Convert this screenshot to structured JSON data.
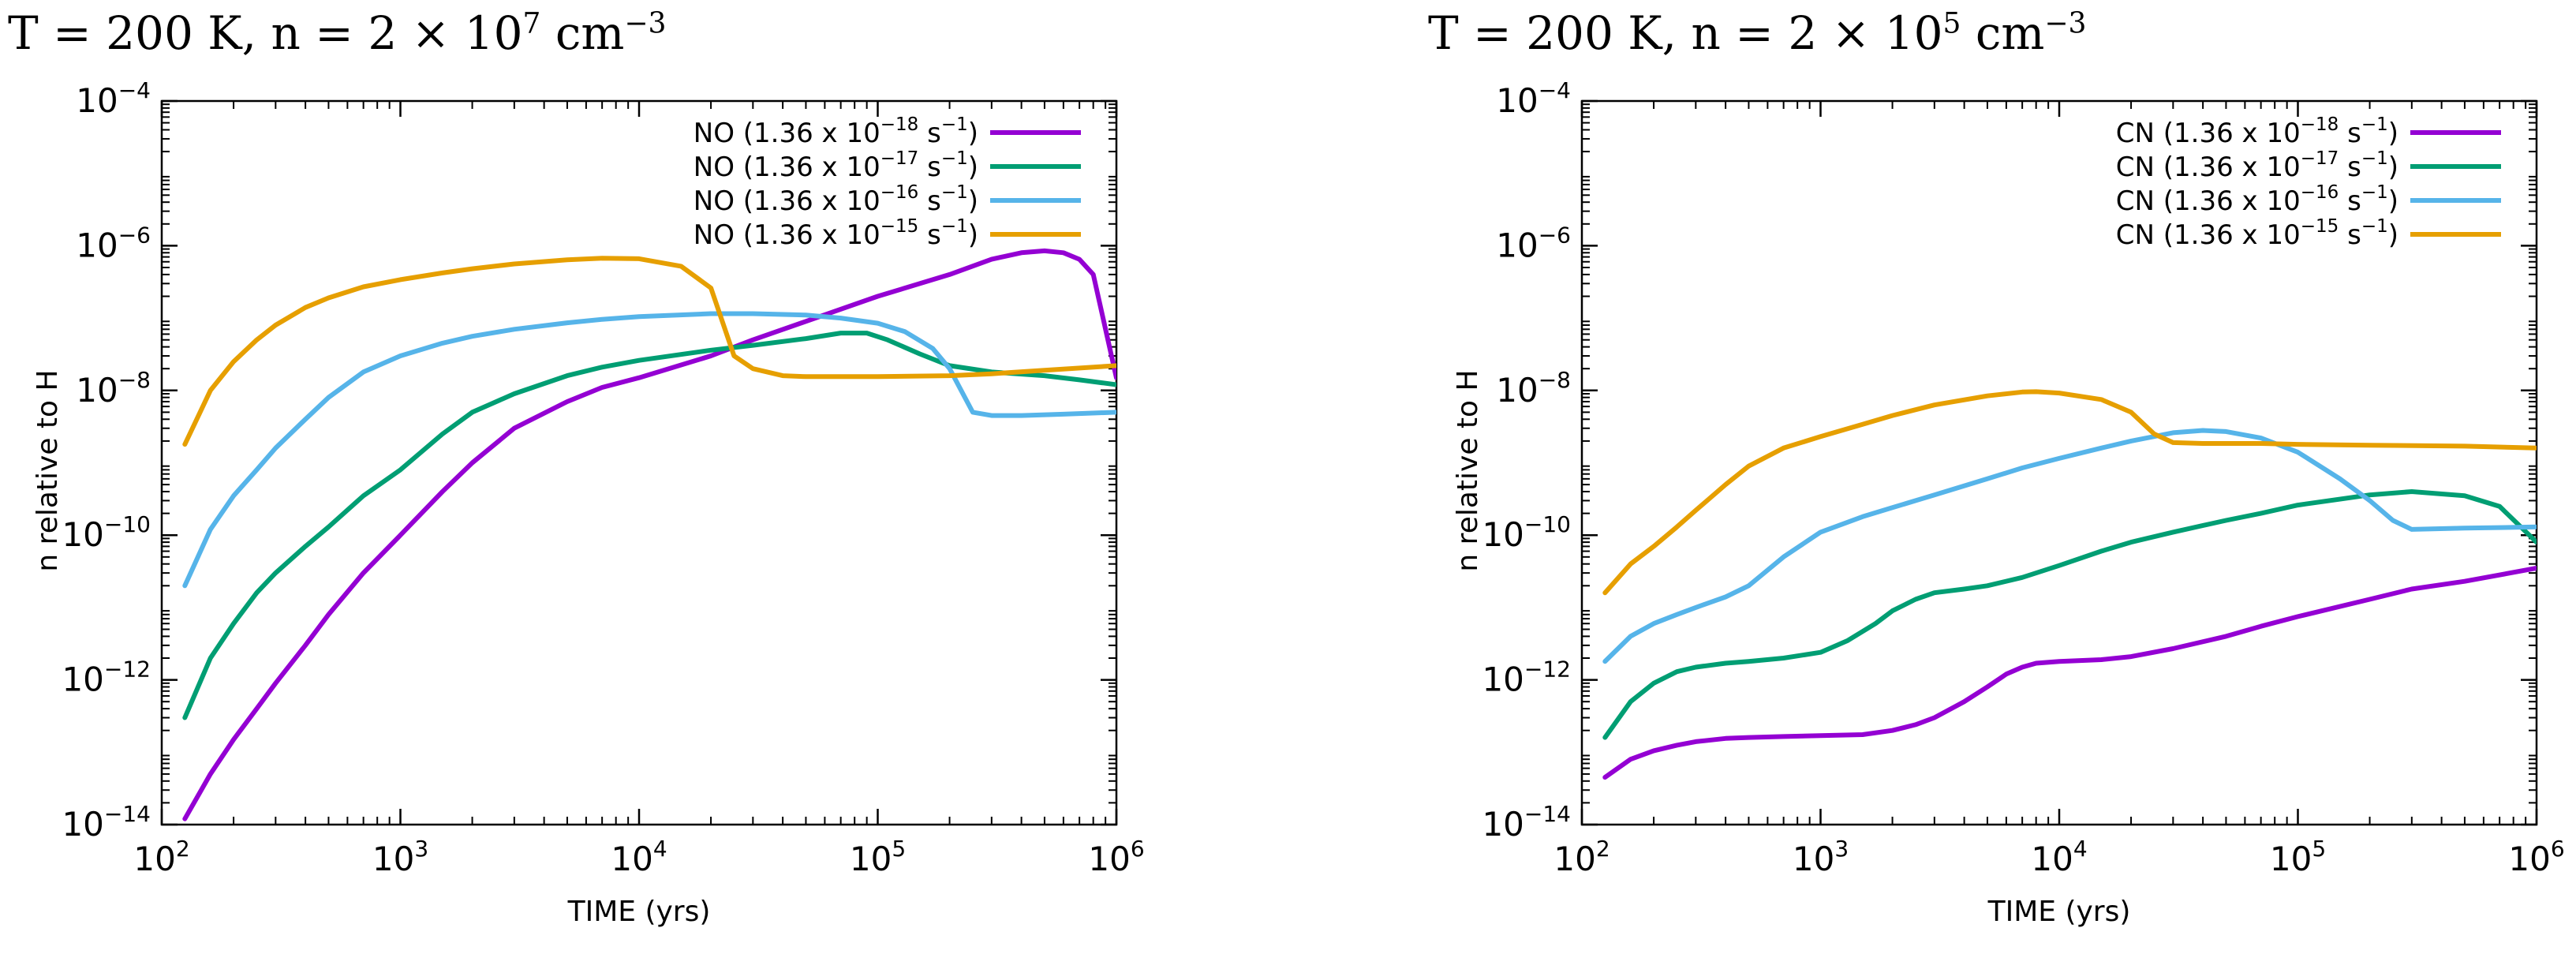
{
  "chart_data": [
    {
      "type": "line",
      "title": "T = 200 K, n = 2 × 10^7 cm^−3",
      "title_parts": {
        "pre": "T = 200 K, n = 2 × 10",
        "exp1": "7",
        "mid": " cm",
        "exp2": "−3"
      },
      "xlabel": "TIME (yrs)",
      "ylabel": "n relative to H",
      "xscale": "log",
      "yscale": "log",
      "xlim": [
        100,
        1000000
      ],
      "ylim": [
        1e-14,
        0.0001
      ],
      "x_ticks": [
        {
          "base": "10",
          "exp": "2"
        },
        {
          "base": "10",
          "exp": "3"
        },
        {
          "base": "10",
          "exp": "4"
        },
        {
          "base": "10",
          "exp": "5"
        },
        {
          "base": "10",
          "exp": "6"
        }
      ],
      "y_ticks": [
        {
          "base": "10",
          "exp": "−4"
        },
        {
          "base": "10",
          "exp": "−6"
        },
        {
          "base": "10",
          "exp": "−8"
        },
        {
          "base": "10",
          "exp": "−10"
        },
        {
          "base": "10",
          "exp": "−12"
        },
        {
          "base": "10",
          "exp": "−14"
        }
      ],
      "legend_position": "top-right",
      "series": [
        {
          "name": "NO (1.36 x 10^-18 s^-1)",
          "label_pre": "NO (1.36 x 10",
          "label_exp": "−18",
          "label_post": " s",
          "label_unit_exp": "−1",
          "color": "#9400d3",
          "x": [
            125,
            160,
            200,
            250,
            300,
            400,
            500,
            700,
            1000,
            1500,
            2000,
            3000,
            5000,
            7000,
            10000,
            20000,
            30000,
            50000,
            100000,
            200000,
            300000,
            400000,
            500000,
            600000,
            700000,
            800000,
            1000000
          ],
          "y": [
            1.2e-14,
            5e-14,
            1.5e-13,
            4e-13,
            9e-13,
            3e-12,
            8e-12,
            3e-11,
            1e-10,
            4e-10,
            1e-09,
            3e-09,
            7e-09,
            1.1e-08,
            1.5e-08,
            3e-08,
            5e-08,
            9e-08,
            2e-07,
            4e-07,
            6.5e-07,
            8e-07,
            8.5e-07,
            8e-07,
            6.5e-07,
            4e-07,
            1.5e-08
          ]
        },
        {
          "name": "NO (1.36 x 10^-17 s^-1)",
          "label_pre": "NO (1.36 x 10",
          "label_exp": "−17",
          "label_post": " s",
          "label_unit_exp": "−1",
          "color": "#009e73",
          "x": [
            125,
            160,
            200,
            250,
            300,
            400,
            500,
            700,
            1000,
            1500,
            2000,
            3000,
            5000,
            7000,
            10000,
            20000,
            30000,
            50000,
            70000,
            90000,
            110000,
            150000,
            200000,
            300000,
            500000,
            700000,
            1000000
          ],
          "y": [
            3e-13,
            2e-12,
            6e-12,
            1.6e-11,
            3e-11,
            7e-11,
            1.3e-10,
            3.5e-10,
            8e-10,
            2.5e-09,
            5e-09,
            9e-09,
            1.6e-08,
            2.1e-08,
            2.6e-08,
            3.6e-08,
            4.2e-08,
            5.2e-08,
            6.2e-08,
            6.2e-08,
            5e-08,
            3.2e-08,
            2.2e-08,
            1.8e-08,
            1.6e-08,
            1.4e-08,
            1.2e-08
          ]
        },
        {
          "name": "NO (1.36 x 10^-16 s^-1)",
          "label_pre": "NO (1.36 x 10",
          "label_exp": "−16",
          "label_post": " s",
          "label_unit_exp": "−1",
          "color": "#56b4e9",
          "x": [
            125,
            160,
            200,
            250,
            300,
            400,
            500,
            700,
            1000,
            1500,
            2000,
            3000,
            5000,
            7000,
            10000,
            20000,
            30000,
            50000,
            70000,
            100000,
            130000,
            170000,
            200000,
            250000,
            300000,
            400000,
            600000,
            1000000
          ],
          "y": [
            2e-11,
            1.2e-10,
            3.5e-10,
            8e-10,
            1.6e-09,
            4e-09,
            8e-09,
            1.8e-08,
            3e-08,
            4.5e-08,
            5.6e-08,
            7e-08,
            8.6e-08,
            9.6e-08,
            1.05e-07,
            1.15e-07,
            1.15e-07,
            1.1e-07,
            1e-07,
            8.5e-08,
            6.5e-08,
            3.8e-08,
            2e-08,
            5e-09,
            4.5e-09,
            4.5e-09,
            4.7e-09,
            5e-09
          ]
        },
        {
          "name": "NO (1.36 x 10^-15 s^-1)",
          "label_pre": "NO (1.36 x 10",
          "label_exp": "−15",
          "label_post": " s",
          "label_unit_exp": "−1",
          "color": "#e69f00",
          "x": [
            125,
            160,
            200,
            250,
            300,
            400,
            500,
            700,
            1000,
            1500,
            2000,
            3000,
            5000,
            7000,
            10000,
            15000,
            20000,
            25000,
            30000,
            40000,
            50000,
            70000,
            100000,
            200000,
            300000,
            500000,
            1000000
          ],
          "y": [
            1.8e-09,
            1e-08,
            2.5e-08,
            5e-08,
            8e-08,
            1.4e-07,
            1.9e-07,
            2.7e-07,
            3.4e-07,
            4.2e-07,
            4.8e-07,
            5.6e-07,
            6.4e-07,
            6.7e-07,
            6.6e-07,
            5.2e-07,
            2.6e-07,
            3e-08,
            2e-08,
            1.6e-08,
            1.55e-08,
            1.55e-08,
            1.55e-08,
            1.6e-08,
            1.7e-08,
            1.9e-08,
            2.2e-08
          ]
        }
      ]
    },
    {
      "type": "line",
      "title": "T = 200 K, n = 2 × 10^5 cm^−3",
      "title_parts": {
        "pre": "T = 200 K, n = 2 × 10",
        "exp1": "5",
        "mid": " cm",
        "exp2": "−3"
      },
      "xlabel": "TIME (yrs)",
      "ylabel": "n relative to H",
      "xscale": "log",
      "yscale": "log",
      "xlim": [
        100,
        1000000
      ],
      "ylim": [
        1e-14,
        0.0001
      ],
      "x_ticks": [
        {
          "base": "10",
          "exp": "2"
        },
        {
          "base": "10",
          "exp": "3"
        },
        {
          "base": "10",
          "exp": "4"
        },
        {
          "base": "10",
          "exp": "5"
        },
        {
          "base": "10",
          "exp": "6"
        }
      ],
      "y_ticks": [
        {
          "base": "10",
          "exp": "−4"
        },
        {
          "base": "10",
          "exp": "−6"
        },
        {
          "base": "10",
          "exp": "−8"
        },
        {
          "base": "10",
          "exp": "−10"
        },
        {
          "base": "10",
          "exp": "−12"
        },
        {
          "base": "10",
          "exp": "−14"
        }
      ],
      "legend_position": "top-right",
      "series": [
        {
          "name": "CN (1.36 x 10^-18 s^-1)",
          "label_pre": "CN (1.36 x 10",
          "label_exp": "−18",
          "label_post": " s",
          "label_unit_exp": "−1",
          "color": "#9400d3",
          "x": [
            125,
            160,
            200,
            250,
            300,
            400,
            500,
            700,
            1000,
            1500,
            2000,
            2500,
            3000,
            4000,
            5000,
            6000,
            7000,
            8000,
            10000,
            15000,
            20000,
            30000,
            50000,
            70000,
            100000,
            200000,
            300000,
            500000,
            1000000
          ],
          "y": [
            4.5e-14,
            8e-14,
            1.05e-13,
            1.25e-13,
            1.4e-13,
            1.55e-13,
            1.6e-13,
            1.65e-13,
            1.7e-13,
            1.75e-13,
            2e-13,
            2.4e-13,
            3e-13,
            5e-13,
            8e-13,
            1.2e-12,
            1.5e-12,
            1.7e-12,
            1.8e-12,
            1.9e-12,
            2.1e-12,
            2.7e-12,
            4e-12,
            5.5e-12,
            7.5e-12,
            1.3e-11,
            1.8e-11,
            2.3e-11,
            3.5e-11
          ]
        },
        {
          "name": "CN (1.36 x 10^-17 s^-1)",
          "label_pre": "CN (1.36 x 10",
          "label_exp": "−17",
          "label_post": " s",
          "label_unit_exp": "−1",
          "color": "#009e73",
          "x": [
            125,
            160,
            200,
            250,
            300,
            400,
            500,
            700,
            1000,
            1300,
            1700,
            2000,
            2500,
            3000,
            4000,
            5000,
            7000,
            10000,
            15000,
            20000,
            30000,
            50000,
            70000,
            100000,
            200000,
            300000,
            500000,
            700000,
            1000000
          ],
          "y": [
            1.6e-13,
            5e-13,
            9e-13,
            1.3e-12,
            1.5e-12,
            1.7e-12,
            1.8e-12,
            2e-12,
            2.4e-12,
            3.5e-12,
            6e-12,
            9e-12,
            1.3e-11,
            1.6e-11,
            1.8e-11,
            2e-11,
            2.6e-11,
            3.8e-11,
            6e-11,
            8e-11,
            1.1e-10,
            1.6e-10,
            2e-10,
            2.6e-10,
            3.6e-10,
            4e-10,
            3.5e-10,
            2.5e-10,
            8e-11
          ]
        },
        {
          "name": "CN (1.36 x 10^-16 s^-1)",
          "label_pre": "CN (1.36 x 10",
          "label_exp": "−16",
          "label_post": " s",
          "label_unit_exp": "−1",
          "color": "#56b4e9",
          "x": [
            125,
            160,
            200,
            250,
            300,
            400,
            500,
            700,
            1000,
            1500,
            2000,
            3000,
            5000,
            7000,
            10000,
            15000,
            20000,
            30000,
            40000,
            50000,
            70000,
            100000,
            150000,
            200000,
            250000,
            300000,
            500000,
            1000000
          ],
          "y": [
            1.8e-12,
            4e-12,
            6e-12,
            8e-12,
            1e-11,
            1.4e-11,
            2e-11,
            5e-11,
            1.1e-10,
            1.8e-10,
            2.4e-10,
            3.6e-10,
            6e-10,
            8.5e-10,
            1.15e-09,
            1.6e-09,
            2e-09,
            2.6e-09,
            2.8e-09,
            2.7e-09,
            2.2e-09,
            1.4e-09,
            6e-10,
            3e-10,
            1.6e-10,
            1.2e-10,
            1.25e-10,
            1.3e-10
          ]
        },
        {
          "name": "CN (1.36 x 10^-15 s^-1)",
          "label_pre": "CN (1.36 x 10",
          "label_exp": "−15",
          "label_post": " s",
          "label_unit_exp": "−1",
          "color": "#e69f00",
          "x": [
            125,
            160,
            200,
            250,
            300,
            400,
            500,
            700,
            1000,
            1500,
            2000,
            3000,
            5000,
            7000,
            8000,
            10000,
            15000,
            20000,
            25000,
            30000,
            40000,
            50000,
            70000,
            100000,
            200000,
            500000,
            1000000
          ],
          "y": [
            1.6e-11,
            4e-11,
            7e-11,
            1.3e-10,
            2.2e-10,
            5e-10,
            9e-10,
            1.6e-09,
            2.3e-09,
            3.4e-09,
            4.5e-09,
            6.3e-09,
            8.4e-09,
            9.5e-09,
            9.6e-09,
            9.2e-09,
            7.5e-09,
            5e-09,
            2.5e-09,
            1.9e-09,
            1.85e-09,
            1.85e-09,
            1.85e-09,
            1.8e-09,
            1.75e-09,
            1.7e-09,
            1.6e-09
          ]
        }
      ]
    }
  ]
}
